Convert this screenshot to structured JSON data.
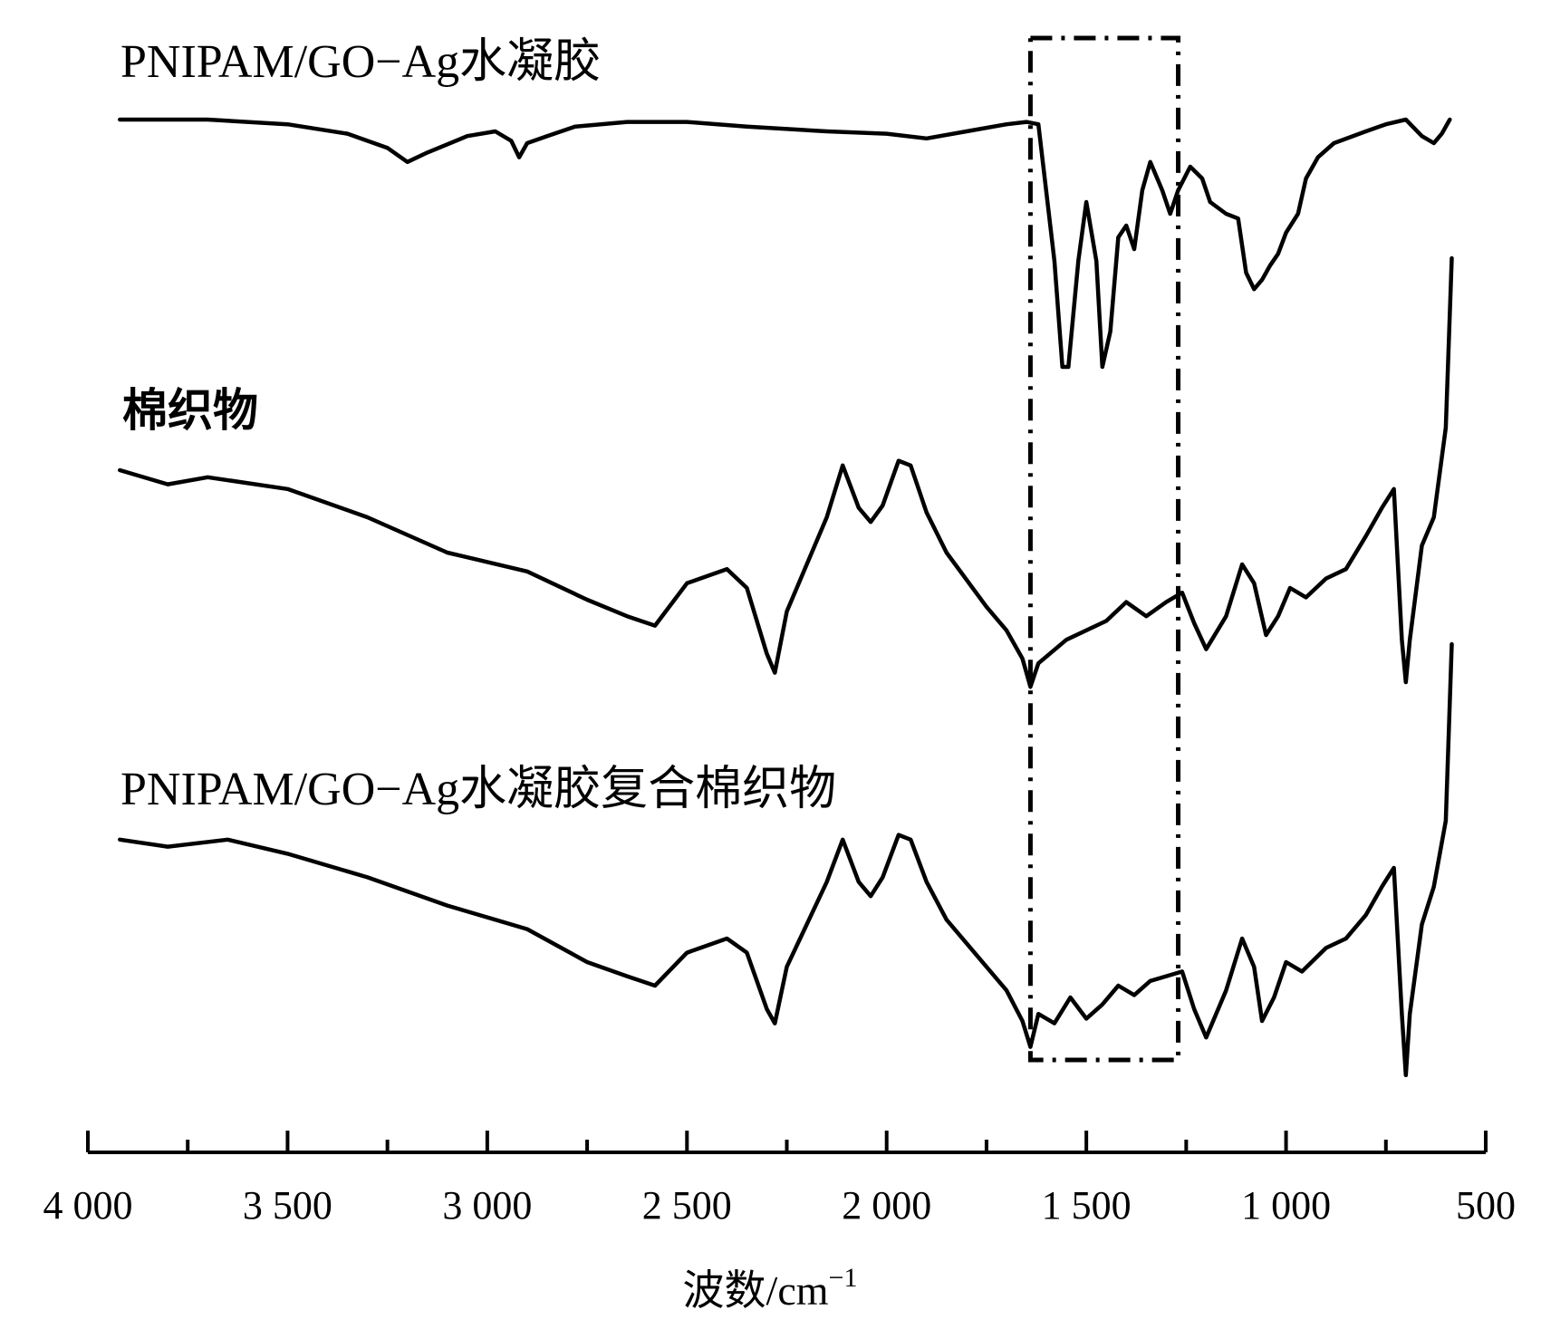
{
  "chart_data": {
    "type": "line",
    "title": "",
    "xlabel": "波数/cm",
    "xlabel_superscript": "−1",
    "ylabel": "",
    "xlim": [
      4000,
      500
    ],
    "x_reversed": true,
    "grid": false,
    "legend": "none",
    "x_ticks": [
      4000,
      3500,
      3000,
      2500,
      2000,
      1500,
      1000,
      500
    ],
    "x_tick_labels": [
      "4 000",
      "3 500",
      "3 000",
      "2 500",
      "2 000",
      "1 500",
      "1 000",
      "500"
    ],
    "highlight_region": {
      "x_from": 1640,
      "x_to": 1270,
      "style": "dash-dot"
    },
    "series": [
      {
        "name": "PNIPAM/GO−Ag水凝胶",
        "label_style": "serif",
        "points": [
          [
            3920,
            10
          ],
          [
            3700,
            10
          ],
          [
            3500,
            8
          ],
          [
            3350,
            4
          ],
          [
            3250,
            -2
          ],
          [
            3200,
            -8
          ],
          [
            3150,
            -4
          ],
          [
            3050,
            3
          ],
          [
            2980,
            5
          ],
          [
            2940,
            1
          ],
          [
            2920,
            -6
          ],
          [
            2900,
            0
          ],
          [
            2850,
            3
          ],
          [
            2780,
            7
          ],
          [
            2650,
            9
          ],
          [
            2500,
            9
          ],
          [
            2350,
            7
          ],
          [
            2150,
            5
          ],
          [
            2000,
            4
          ],
          [
            1900,
            2
          ],
          [
            1800,
            5
          ],
          [
            1700,
            8
          ],
          [
            1650,
            9
          ],
          [
            1620,
            8
          ],
          [
            1580,
            -50
          ],
          [
            1560,
            -95
          ],
          [
            1545,
            -95
          ],
          [
            1520,
            -50
          ],
          [
            1500,
            -25
          ],
          [
            1475,
            -50
          ],
          [
            1460,
            -95
          ],
          [
            1440,
            -80
          ],
          [
            1420,
            -40
          ],
          [
            1400,
            -35
          ],
          [
            1380,
            -45
          ],
          [
            1360,
            -20
          ],
          [
            1340,
            -8
          ],
          [
            1310,
            -20
          ],
          [
            1290,
            -30
          ],
          [
            1270,
            -20
          ],
          [
            1240,
            -10
          ],
          [
            1210,
            -15
          ],
          [
            1190,
            -25
          ],
          [
            1150,
            -30
          ],
          [
            1120,
            -32
          ],
          [
            1100,
            -55
          ],
          [
            1080,
            -62
          ],
          [
            1060,
            -58
          ],
          [
            1040,
            -52
          ],
          [
            1020,
            -47
          ],
          [
            1000,
            -38
          ],
          [
            970,
            -30
          ],
          [
            950,
            -15
          ],
          [
            920,
            -6
          ],
          [
            880,
            0
          ],
          [
            800,
            5
          ],
          [
            750,
            8
          ],
          [
            700,
            10
          ],
          [
            660,
            3
          ],
          [
            630,
            0
          ],
          [
            610,
            4
          ],
          [
            590,
            10
          ]
        ]
      },
      {
        "name": "棉织物",
        "label_style": "bold",
        "points": [
          [
            3920,
            10
          ],
          [
            3800,
            4
          ],
          [
            3700,
            7
          ],
          [
            3500,
            2
          ],
          [
            3300,
            -10
          ],
          [
            3100,
            -25
          ],
          [
            2900,
            -33
          ],
          [
            2750,
            -45
          ],
          [
            2650,
            -52
          ],
          [
            2580,
            -56
          ],
          [
            2500,
            -38
          ],
          [
            2400,
            -32
          ],
          [
            2350,
            -40
          ],
          [
            2300,
            -68
          ],
          [
            2280,
            -76
          ],
          [
            2250,
            -50
          ],
          [
            2150,
            -10
          ],
          [
            2110,
            12
          ],
          [
            2070,
            -6
          ],
          [
            2040,
            -12
          ],
          [
            2010,
            -5
          ],
          [
            1970,
            14
          ],
          [
            1940,
            12
          ],
          [
            1900,
            -8
          ],
          [
            1850,
            -25
          ],
          [
            1750,
            -48
          ],
          [
            1700,
            -58
          ],
          [
            1660,
            -70
          ],
          [
            1640,
            -82
          ],
          [
            1620,
            -72
          ],
          [
            1550,
            -62
          ],
          [
            1450,
            -54
          ],
          [
            1400,
            -46
          ],
          [
            1350,
            -52
          ],
          [
            1300,
            -46
          ],
          [
            1260,
            -42
          ],
          [
            1230,
            -55
          ],
          [
            1200,
            -66
          ],
          [
            1150,
            -52
          ],
          [
            1110,
            -30
          ],
          [
            1080,
            -38
          ],
          [
            1050,
            -60
          ],
          [
            1020,
            -52
          ],
          [
            990,
            -40
          ],
          [
            950,
            -44
          ],
          [
            900,
            -36
          ],
          [
            850,
            -32
          ],
          [
            800,
            -18
          ],
          [
            760,
            -6
          ],
          [
            730,
            2
          ],
          [
            710,
            -62
          ],
          [
            700,
            -80
          ],
          [
            690,
            -62
          ],
          [
            660,
            -22
          ],
          [
            630,
            -10
          ],
          [
            600,
            28
          ],
          [
            585,
            100
          ]
        ]
      },
      {
        "name": "PNIPAM/GO−Ag水凝胶复合棉织物",
        "label_style": "serif",
        "points": [
          [
            3920,
            12
          ],
          [
            3800,
            9
          ],
          [
            3650,
            12
          ],
          [
            3500,
            6
          ],
          [
            3300,
            -4
          ],
          [
            3100,
            -16
          ],
          [
            2900,
            -26
          ],
          [
            2750,
            -40
          ],
          [
            2650,
            -46
          ],
          [
            2580,
            -50
          ],
          [
            2500,
            -36
          ],
          [
            2400,
            -30
          ],
          [
            2350,
            -36
          ],
          [
            2300,
            -60
          ],
          [
            2280,
            -66
          ],
          [
            2250,
            -42
          ],
          [
            2150,
            -6
          ],
          [
            2110,
            12
          ],
          [
            2070,
            -6
          ],
          [
            2040,
            -12
          ],
          [
            2010,
            -4
          ],
          [
            1970,
            14
          ],
          [
            1940,
            12
          ],
          [
            1900,
            -6
          ],
          [
            1850,
            -22
          ],
          [
            1750,
            -42
          ],
          [
            1700,
            -52
          ],
          [
            1660,
            -65
          ],
          [
            1640,
            -76
          ],
          [
            1620,
            -62
          ],
          [
            1580,
            -66
          ],
          [
            1540,
            -55
          ],
          [
            1500,
            -64
          ],
          [
            1460,
            -58
          ],
          [
            1420,
            -50
          ],
          [
            1380,
            -54
          ],
          [
            1340,
            -48
          ],
          [
            1300,
            -46
          ],
          [
            1260,
            -44
          ],
          [
            1230,
            -60
          ],
          [
            1200,
            -72
          ],
          [
            1150,
            -52
          ],
          [
            1110,
            -30
          ],
          [
            1080,
            -42
          ],
          [
            1060,
            -65
          ],
          [
            1030,
            -55
          ],
          [
            1000,
            -40
          ],
          [
            960,
            -44
          ],
          [
            900,
            -34
          ],
          [
            850,
            -30
          ],
          [
            800,
            -20
          ],
          [
            760,
            -8
          ],
          [
            730,
            0
          ],
          [
            710,
            -62
          ],
          [
            700,
            -88
          ],
          [
            690,
            -62
          ],
          [
            660,
            -24
          ],
          [
            630,
            -8
          ],
          [
            600,
            20
          ],
          [
            585,
            95
          ]
        ]
      }
    ]
  }
}
